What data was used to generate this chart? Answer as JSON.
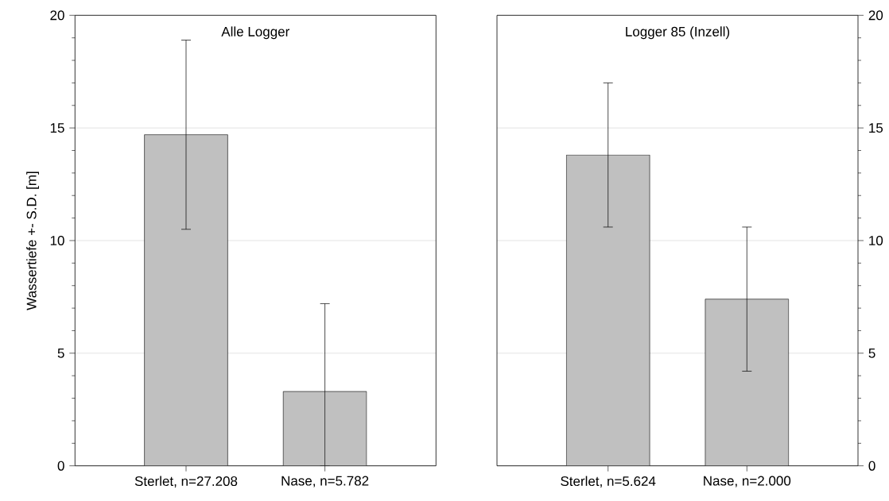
{
  "chart_data": [
    {
      "type": "bar",
      "title": "Alle Logger",
      "ylabel": "Wassertiefe +- S.D. [m]",
      "categories": [
        "Sterlet, n=27.208",
        "Nase, n=5.782"
      ],
      "values": [
        14.7,
        3.3
      ],
      "errors": [
        4.2,
        [
          0,
          7.2
        ]
      ],
      "color": "#c0c0c0",
      "ylim": [
        0,
        20
      ],
      "yticks": [
        0,
        5,
        10,
        15,
        20
      ],
      "grid": "y"
    },
    {
      "type": "bar",
      "title": "Logger 85 (Inzell)",
      "categories": [
        "Sterlet, n=5.624",
        "Nase, n=2.000"
      ],
      "values": [
        13.8,
        7.4
      ],
      "errors": [
        3.2,
        3.2
      ],
      "color": "#c0c0c0",
      "ylim": [
        0,
        20
      ],
      "yticks": [
        0,
        5,
        10,
        15,
        20
      ],
      "grid": "y"
    }
  ]
}
